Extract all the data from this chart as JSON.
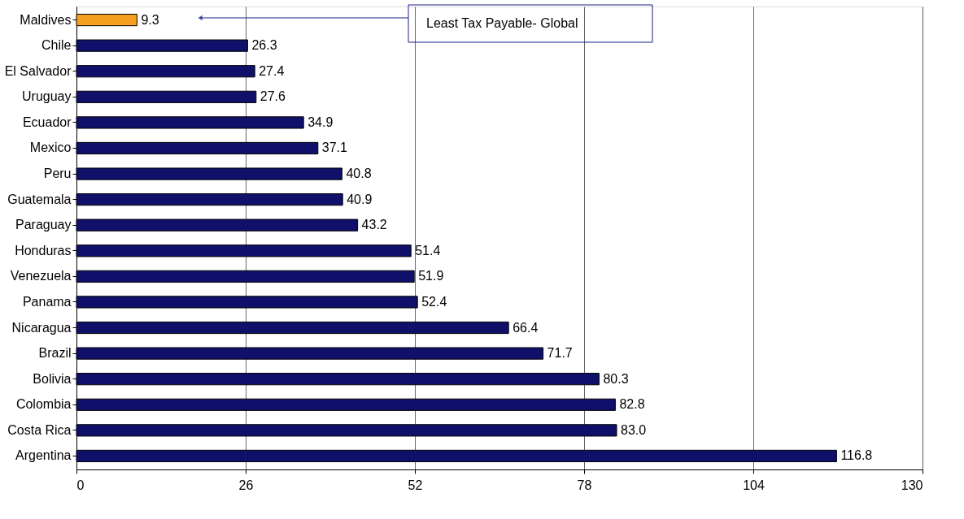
{
  "chart_data": {
    "type": "bar",
    "orientation": "horizontal",
    "categories": [
      "Maldives",
      "Chile",
      "El Salvador",
      "Uruguay",
      "Ecuador",
      "Mexico",
      "Peru",
      "Guatemala",
      "Paraguay",
      "Honduras",
      "Venezuela",
      "Panama",
      "Nicaragua",
      "Brazil",
      "Bolivia",
      "Colombia",
      "Costa Rica",
      "Argentina"
    ],
    "values": [
      9.3,
      26.3,
      27.4,
      27.6,
      34.9,
      37.1,
      40.8,
      40.9,
      43.2,
      51.4,
      51.9,
      52.4,
      66.4,
      71.7,
      80.3,
      82.8,
      83.0,
      116.8
    ],
    "value_labels": [
      "9.3",
      "26.3",
      "27.4",
      "27.6",
      "34.9",
      "37.1",
      "40.8",
      "40.9",
      "43.2",
      "51.4",
      "51.9",
      "52.4",
      "66.4",
      "71.7",
      "80.3",
      "82.8",
      "83.0",
      "116.8"
    ],
    "colors": [
      "#f5a020",
      "#10106b",
      "#10106b",
      "#10106b",
      "#10106b",
      "#10106b",
      "#10106b",
      "#10106b",
      "#10106b",
      "#10106b",
      "#10106b",
      "#10106b",
      "#10106b",
      "#10106b",
      "#10106b",
      "#10106b",
      "#10106b",
      "#10106b"
    ],
    "xlim": [
      0,
      130
    ],
    "xticks": [
      0,
      26,
      52,
      78,
      104,
      130
    ],
    "grid": "x",
    "annotations": [
      "Least Tax Payable- Global"
    ]
  }
}
